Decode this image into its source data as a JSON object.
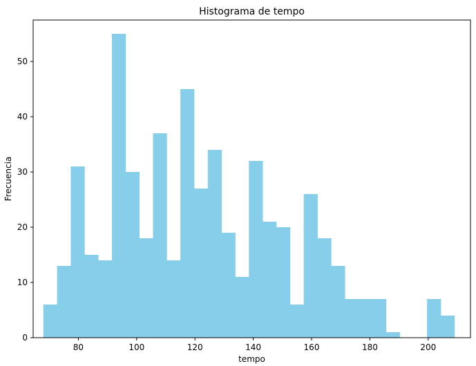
{
  "chart_data": {
    "type": "bar",
    "title": "Histograma de tempo",
    "xlabel": "tempo",
    "ylabel": "Frecuencia",
    "bar_color": "#87CEEB",
    "xlim": [
      64.5,
      214.5
    ],
    "ylim": [
      0,
      57.5
    ],
    "xticks": [
      80,
      100,
      120,
      140,
      160,
      180,
      200
    ],
    "yticks": [
      0,
      10,
      20,
      30,
      40,
      50
    ],
    "grid": false,
    "bins": [
      {
        "x0": 68.0,
        "x1": 72.7,
        "value": 6
      },
      {
        "x0": 72.7,
        "x1": 77.4,
        "value": 13
      },
      {
        "x0": 77.4,
        "x1": 82.1,
        "value": 31
      },
      {
        "x0": 82.1,
        "x1": 86.8,
        "value": 15
      },
      {
        "x0": 86.8,
        "x1": 91.5,
        "value": 14
      },
      {
        "x0": 91.5,
        "x1": 96.2,
        "value": 55
      },
      {
        "x0": 96.2,
        "x1": 100.9,
        "value": 30
      },
      {
        "x0": 100.9,
        "x1": 105.6,
        "value": 18
      },
      {
        "x0": 105.6,
        "x1": 110.3,
        "value": 37
      },
      {
        "x0": 110.3,
        "x1": 115.0,
        "value": 14
      },
      {
        "x0": 115.0,
        "x1": 119.7,
        "value": 45
      },
      {
        "x0": 119.7,
        "x1": 124.4,
        "value": 27
      },
      {
        "x0": 124.4,
        "x1": 129.1,
        "value": 34
      },
      {
        "x0": 129.1,
        "x1": 133.8,
        "value": 19
      },
      {
        "x0": 133.8,
        "x1": 138.5,
        "value": 11
      },
      {
        "x0": 138.5,
        "x1": 143.2,
        "value": 32
      },
      {
        "x0": 143.2,
        "x1": 147.9,
        "value": 21
      },
      {
        "x0": 147.9,
        "x1": 152.6,
        "value": 20
      },
      {
        "x0": 152.6,
        "x1": 157.3,
        "value": 6
      },
      {
        "x0": 157.3,
        "x1": 162.0,
        "value": 26
      },
      {
        "x0": 162.0,
        "x1": 166.7,
        "value": 18
      },
      {
        "x0": 166.7,
        "x1": 171.4,
        "value": 13
      },
      {
        "x0": 171.4,
        "x1": 176.1,
        "value": 7
      },
      {
        "x0": 176.1,
        "x1": 180.8,
        "value": 7
      },
      {
        "x0": 180.8,
        "x1": 185.5,
        "value": 7
      },
      {
        "x0": 185.5,
        "x1": 190.2,
        "value": 1
      },
      {
        "x0": 190.2,
        "x1": 194.9,
        "value": 0
      },
      {
        "x0": 194.9,
        "x1": 199.6,
        "value": 0
      },
      {
        "x0": 199.6,
        "x1": 204.3,
        "value": 7
      },
      {
        "x0": 204.3,
        "x1": 209.0,
        "value": 4
      }
    ]
  }
}
